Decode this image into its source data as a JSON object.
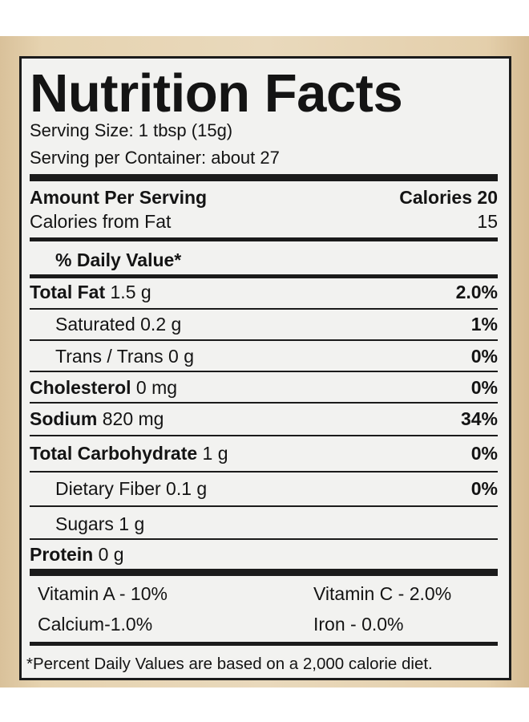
{
  "label": {
    "title": "Nutrition Facts",
    "serving_size": "Serving Size: 1 tbsp (15g)",
    "servings_per_container": "Serving per Container: about 27",
    "amount_per_serving": "Amount Per Serving",
    "calories": "Calories 20",
    "calories_from_fat_label": "Calories from Fat",
    "calories_from_fat_value": "15",
    "daily_value_header": "% Daily Value*",
    "nutrients": [
      {
        "name": "Total Fat",
        "amount": "1.5 g",
        "dv": "2.0%"
      },
      {
        "name": "Saturated",
        "amount": "0.2 g",
        "dv": "1%"
      },
      {
        "name": "Trans / Trans",
        "amount": "0 g",
        "dv": "0%"
      },
      {
        "name": "Cholesterol",
        "amount": "0 mg",
        "dv": "0%"
      },
      {
        "name": "Sodium",
        "amount": "820 mg",
        "dv": "34%"
      },
      {
        "name": "Total Carbohydrate",
        "amount": "1 g",
        "dv": "0%"
      },
      {
        "name": "Dietary Fiber",
        "amount": "0.1 g",
        "dv": "0%"
      },
      {
        "name": "Sugars",
        "amount": "1 g",
        "dv": ""
      },
      {
        "name": "Protein",
        "amount": "0 g",
        "dv": ""
      }
    ],
    "vitamins": [
      {
        "text": "Vitamin A - 10%"
      },
      {
        "text": "Vitamin C - 2.0%"
      },
      {
        "text": "Calcium-1.0%"
      },
      {
        "text": "Iron - 0.0%"
      }
    ],
    "footnote": "*Percent Daily Values are based on a 2,000 calorie diet."
  },
  "colors": {
    "ink": "#1b1b1b",
    "label_bg": "#f2f2f0",
    "package": "#e6d3b0"
  }
}
